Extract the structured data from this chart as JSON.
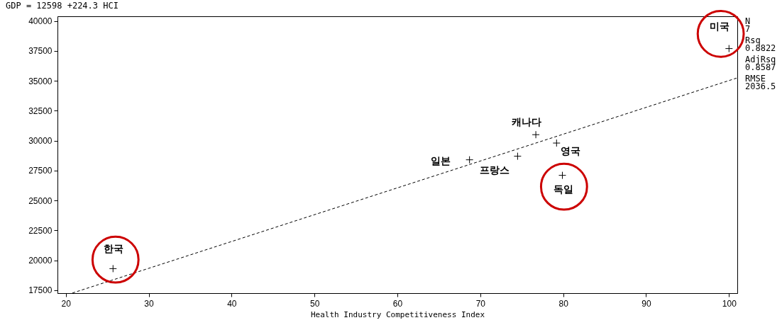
{
  "chart_data": {
    "type": "scatter",
    "title": "GDP = 12598 +224.3 HCI",
    "xlabel": "Health Industry Competitiveness Index",
    "xlim": [
      19,
      101
    ],
    "xticks": [
      20,
      30,
      40,
      50,
      60,
      70,
      80,
      90,
      100
    ],
    "ylim": [
      17250,
      40400
    ],
    "yticks": [
      17500,
      20000,
      22500,
      25000,
      27500,
      30000,
      32500,
      35000,
      37500,
      40000
    ],
    "grid": false,
    "series": [
      {
        "type": "line",
        "color": "#000000",
        "line_style": "dashed",
        "marker": "none",
        "x": [
          20.8,
          101
        ],
        "values": [
          17260,
          35250
        ]
      },
      {
        "type": "scatter",
        "color": "#000000",
        "marker": "cross",
        "x": [
          100.0,
          76.7,
          79.2,
          74.5,
          68.7,
          79.9,
          25.7
        ],
        "values": [
          37700,
          30500,
          29800,
          28700,
          28400,
          27100,
          19300
        ]
      },
      {
        "type": "scatter",
        "color": "#cc0000",
        "marker": "circle",
        "x": [
          99.0,
          80.1,
          26.0
        ],
        "values": [
          38930,
          26150,
          20050
        ]
      }
    ],
    "annotations": [
      {
        "text": "미국",
        "x": 100.0,
        "y": 37700
      },
      {
        "text": "캐나다",
        "x": 76.7,
        "y": 30500
      },
      {
        "text": "영국",
        "x": 79.2,
        "y": 29800
      },
      {
        "text": "프랑스",
        "x": 74.5,
        "y": 28700
      },
      {
        "text": "일본",
        "x": 68.7,
        "y": 28400
      },
      {
        "text": "독일",
        "x": 79.9,
        "y": 27100
      },
      {
        "text": "한국",
        "x": 25.7,
        "y": 19300
      },
      "N",
      "7",
      "Rsq",
      "0.8822",
      "AdjRsq",
      "0.8587",
      "RMSE",
      "2036.5"
    ]
  }
}
